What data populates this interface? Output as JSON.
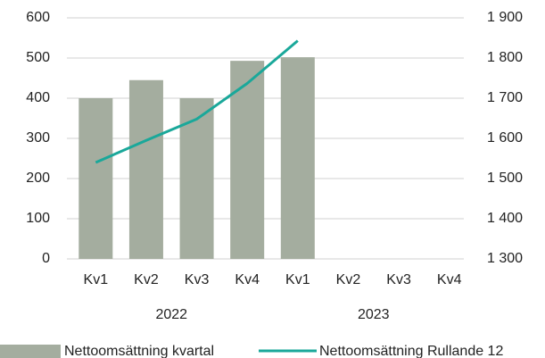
{
  "chart_data": {
    "type": "bar-line",
    "categories": [
      "Kv1",
      "Kv2",
      "Kv3",
      "Kv4",
      "Kv1",
      "Kv2",
      "Kv3",
      "Kv4"
    ],
    "year_groups": [
      "2022",
      "2023"
    ],
    "series": [
      {
        "name": "Nettoomsättning kvartal",
        "type": "bar",
        "color": "#a4ad9f",
        "values": [
          400,
          445,
          400,
          493,
          502,
          null,
          null,
          null
        ]
      },
      {
        "name": "Nettoomsättning Rullande 12",
        "type": "line",
        "axis": "y2",
        "color": "#1aa89a",
        "values": [
          1540,
          1595,
          1648,
          1737,
          1843,
          null,
          null,
          null
        ]
      }
    ],
    "ylim": [
      0,
      600
    ],
    "yticks": [
      0,
      100,
      200,
      300,
      400,
      500,
      600
    ],
    "y2lim": [
      1300,
      1900
    ],
    "y2ticks": [
      {
        "value": 1300,
        "label": "1 300"
      },
      {
        "value": 1400,
        "label": "1 400"
      },
      {
        "value": 1500,
        "label": "1 500"
      },
      {
        "value": 1600,
        "label": "1 600"
      },
      {
        "value": 1700,
        "label": "1 700"
      },
      {
        "value": 1800,
        "label": "1 800"
      },
      {
        "value": 1900,
        "label": "1 900"
      }
    ],
    "grid": true,
    "legend": "bottom"
  }
}
